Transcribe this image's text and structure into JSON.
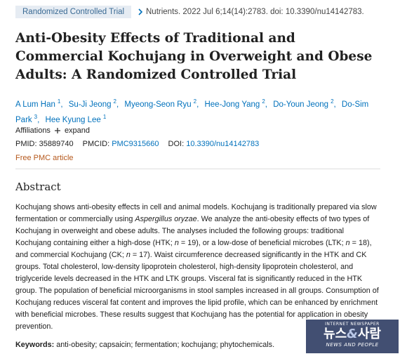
{
  "header": {
    "badge": "Randomized Controlled Trial",
    "citation": "Nutrients. 2022 Jul 6;14(14):2783. doi: 10.3390/nu14142783."
  },
  "title": "Anti-Obesity Effects of Traditional and Commercial Kochujang in Overweight and Obese Adults: A Randomized Controlled Trial",
  "authors": [
    {
      "name": "A Lum Han",
      "aff": "1",
      "sep": ","
    },
    {
      "name": "Su-Ji Jeong",
      "aff": "2",
      "sep": ","
    },
    {
      "name": "Myeong-Seon Ryu",
      "aff": "2",
      "sep": ","
    },
    {
      "name": "Hee-Jong Yang",
      "aff": "2",
      "sep": ","
    },
    {
      "name": "Do-Youn Jeong",
      "aff": "2",
      "sep": ","
    },
    {
      "name": "Do-Sim Park",
      "aff": "3",
      "sep": ","
    },
    {
      "name": "Hee Kyung Lee",
      "aff": "1"
    }
  ],
  "affiliations": {
    "label": "Affiliations",
    "toggle": "expand"
  },
  "ids": {
    "pmid_label": "PMID:",
    "pmid": "35889740",
    "pmcid_label": "PMCID:",
    "pmcid": "PMC9315660",
    "doi_label": "DOI:",
    "doi": "10.3390/nu14142783"
  },
  "free_article": "Free PMC article",
  "abstract": {
    "heading": "Abstract",
    "segments": [
      "Kochujang shows anti-obesity effects in cell and animal models. Kochujang is traditionally prepared via slow fermentation or commercially using ",
      "Aspergillus oryzae",
      ". We analyze the anti-obesity effects of two types of Kochujang in overweight and obese adults. The analyses included the following groups: traditional Kochujang containing either a high-dose (HTK; ",
      "n",
      " = 19), or a low-dose of beneficial microbes (LTK; ",
      "n",
      " = 18), and commercial Kochujang (CK; ",
      "n",
      " = 17). Waist circumference decreased significantly in the HTK and CK groups. Total cholesterol, low-density lipoprotein cholesterol, high-density lipoprotein cholesterol, and triglyceride levels decreased in the HTK and LTK groups. Visceral fat is significantly reduced in the HTK group. The population of beneficial microorganisms in stool samples increased in all groups. Consumption of Kochujang reduces visceral fat content and improves the lipid profile, which can be enhanced by enrichment with beneficial microbes. These results suggest that Kochujang has the potential for application in obesity prevention."
    ]
  },
  "keywords": {
    "label": "Keywords:",
    "text": "anti-obesity; capsaicin; fermentation; kochujang; phytochemicals."
  },
  "watermark": {
    "top": "INTERNET NEWSPAPER",
    "main_left": "뉴스",
    "main_mid": "&",
    "main_right": "사람",
    "bottom": "NEWS AND PEOPLE"
  }
}
